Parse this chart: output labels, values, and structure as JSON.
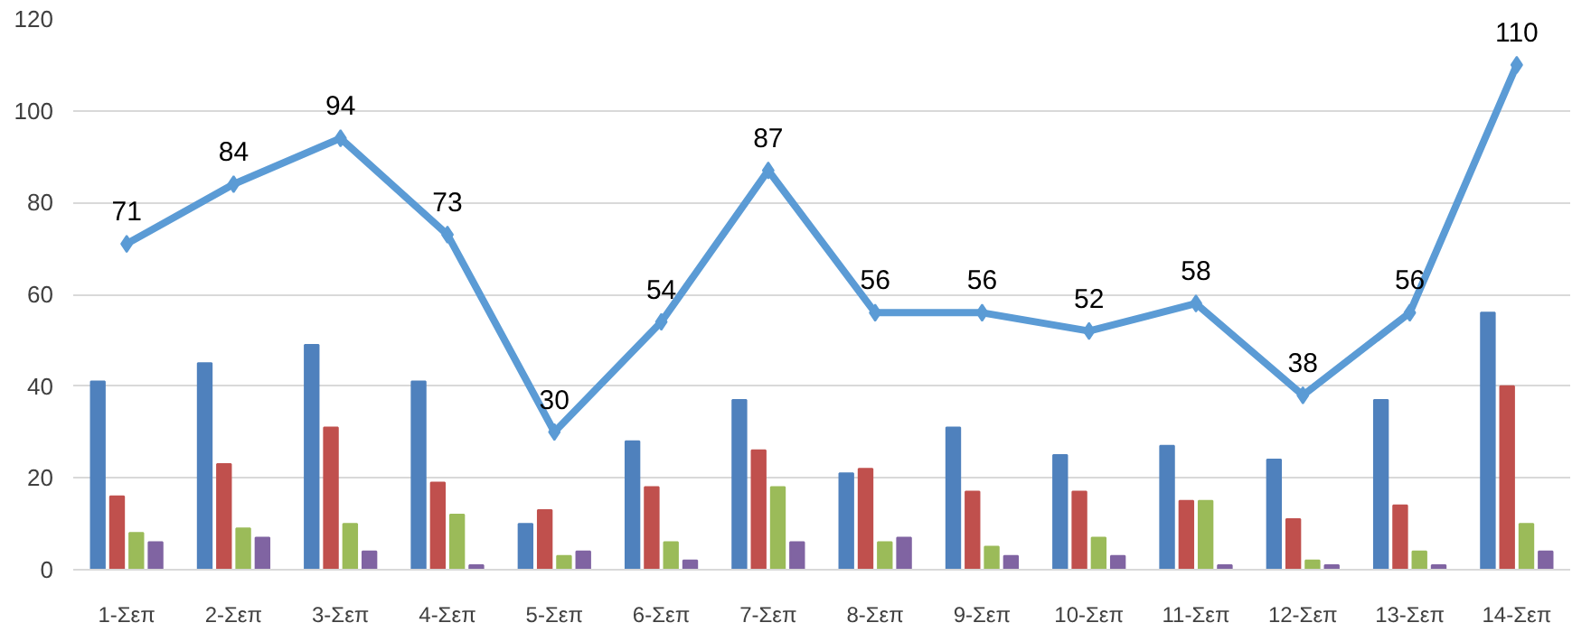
{
  "chart_data": {
    "type": "bar",
    "categories": [
      "1-Σεπ",
      "2-Σεπ",
      "3-Σεπ",
      "4-Σεπ",
      "5-Σεπ",
      "6-Σεπ",
      "7-Σεπ",
      "8-Σεπ",
      "9-Σεπ",
      "10-Σεπ",
      "11-Σεπ",
      "12-Σεπ",
      "13-Σεπ",
      "14-Σεπ"
    ],
    "series": [
      {
        "color": "#4f81bd",
        "values": [
          41,
          45,
          49,
          41,
          10,
          28,
          37,
          21,
          31,
          25,
          27,
          24,
          37,
          56
        ]
      },
      {
        "color": "#c0504d",
        "values": [
          16,
          23,
          31,
          19,
          13,
          18,
          26,
          22,
          17,
          17,
          15,
          11,
          14,
          40
        ]
      },
      {
        "color": "#9bbb59",
        "values": [
          8,
          9,
          10,
          12,
          3,
          6,
          18,
          6,
          5,
          7,
          15,
          2,
          4,
          10
        ]
      },
      {
        "color": "#8064a2",
        "values": [
          6,
          7,
          4,
          1,
          4,
          2,
          6,
          7,
          3,
          3,
          1,
          1,
          1,
          4
        ]
      },
      {
        "type": "line",
        "color": "#5b9bd5",
        "marker": "diamond",
        "values": [
          71,
          84,
          94,
          73,
          30,
          54,
          87,
          56,
          56,
          52,
          58,
          38,
          56,
          110
        ],
        "value_labels": [
          "71",
          "84",
          "94",
          "73",
          "30",
          "54",
          "87",
          "56",
          "56",
          "52",
          "58",
          "38",
          "56",
          "110"
        ]
      }
    ],
    "ylim": [
      0,
      120
    ],
    "yticks": [
      0,
      20,
      40,
      60,
      80,
      100,
      120
    ],
    "grid": "y"
  }
}
